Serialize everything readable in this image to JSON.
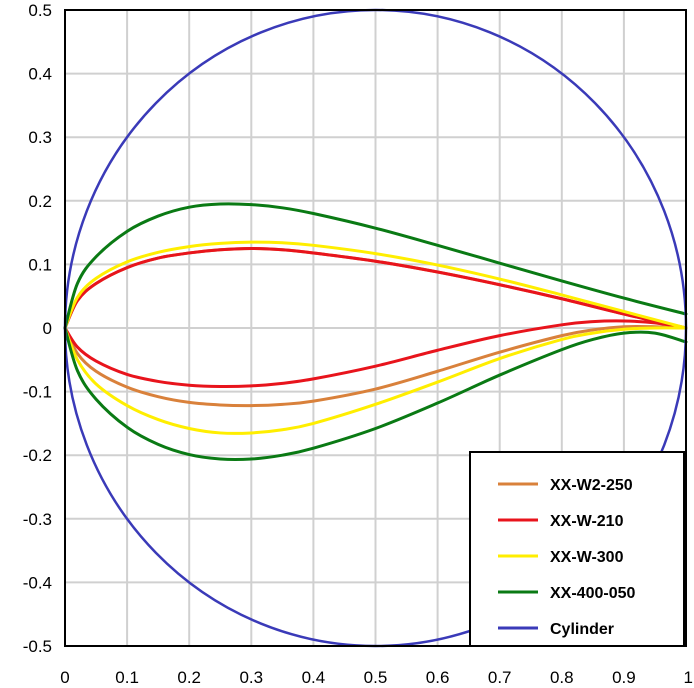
{
  "chart_data": {
    "type": "line",
    "title": "",
    "xlabel": "",
    "ylabel": "",
    "xlim": [
      0,
      1
    ],
    "ylim": [
      -0.5,
      0.5
    ],
    "x_ticks": [
      "0",
      "0.1",
      "0.2",
      "0.3",
      "0.4",
      "0.5",
      "0.6",
      "0.7",
      "0.8",
      "0.9",
      "1"
    ],
    "y_ticks": [
      "0.5",
      "0.4",
      "0.3",
      "0.2",
      "0.1",
      "0",
      "-0.1",
      "-0.2",
      "-0.3",
      "-0.4",
      "-0.5"
    ],
    "grid": true,
    "legend_position": "bottom-right",
    "series": [
      {
        "name": "XX-W2-250",
        "color": "#d9813b",
        "upper": [
          [
            0,
            0
          ],
          [
            0.02,
            0.043
          ],
          [
            0.05,
            0.07
          ],
          [
            0.1,
            0.095
          ],
          [
            0.15,
            0.11
          ],
          [
            0.2,
            0.118
          ],
          [
            0.25,
            0.123
          ],
          [
            0.3,
            0.125
          ],
          [
            0.35,
            0.123
          ],
          [
            0.4,
            0.118
          ],
          [
            0.5,
            0.105
          ],
          [
            0.6,
            0.088
          ],
          [
            0.7,
            0.068
          ],
          [
            0.8,
            0.046
          ],
          [
            0.9,
            0.022
          ],
          [
            1,
            0
          ]
        ],
        "lower": [
          [
            0,
            0
          ],
          [
            0.02,
            -0.04
          ],
          [
            0.05,
            -0.068
          ],
          [
            0.1,
            -0.093
          ],
          [
            0.15,
            -0.108
          ],
          [
            0.2,
            -0.117
          ],
          [
            0.25,
            -0.121
          ],
          [
            0.3,
            -0.122
          ],
          [
            0.35,
            -0.12
          ],
          [
            0.4,
            -0.115
          ],
          [
            0.5,
            -0.096
          ],
          [
            0.6,
            -0.068
          ],
          [
            0.7,
            -0.038
          ],
          [
            0.8,
            -0.012
          ],
          [
            0.85,
            -0.003
          ],
          [
            0.9,
            0.002
          ],
          [
            0.95,
            0.002
          ],
          [
            1,
            0
          ]
        ]
      },
      {
        "name": "XX-W-210",
        "color": "#e8141c",
        "upper": [
          [
            0,
            0
          ],
          [
            0.02,
            0.043
          ],
          [
            0.05,
            0.07
          ],
          [
            0.1,
            0.095
          ],
          [
            0.15,
            0.11
          ],
          [
            0.2,
            0.118
          ],
          [
            0.25,
            0.123
          ],
          [
            0.3,
            0.125
          ],
          [
            0.35,
            0.123
          ],
          [
            0.4,
            0.118
          ],
          [
            0.5,
            0.105
          ],
          [
            0.6,
            0.088
          ],
          [
            0.7,
            0.068
          ],
          [
            0.8,
            0.046
          ],
          [
            0.9,
            0.022
          ],
          [
            1,
            0
          ]
        ],
        "lower": [
          [
            0,
            0
          ],
          [
            0.02,
            -0.03
          ],
          [
            0.05,
            -0.052
          ],
          [
            0.1,
            -0.073
          ],
          [
            0.15,
            -0.084
          ],
          [
            0.2,
            -0.09
          ],
          [
            0.25,
            -0.092
          ],
          [
            0.3,
            -0.091
          ],
          [
            0.35,
            -0.087
          ],
          [
            0.4,
            -0.08
          ],
          [
            0.5,
            -0.06
          ],
          [
            0.6,
            -0.035
          ],
          [
            0.7,
            -0.012
          ],
          [
            0.8,
            0.005
          ],
          [
            0.85,
            0.01
          ],
          [
            0.9,
            0.011
          ],
          [
            0.95,
            0.008
          ],
          [
            1,
            0
          ]
        ]
      },
      {
        "name": "XX-W-300",
        "color": "#ffee00",
        "upper": [
          [
            0,
            0
          ],
          [
            0.02,
            0.048
          ],
          [
            0.05,
            0.078
          ],
          [
            0.1,
            0.104
          ],
          [
            0.15,
            0.119
          ],
          [
            0.2,
            0.128
          ],
          [
            0.25,
            0.133
          ],
          [
            0.3,
            0.135
          ],
          [
            0.35,
            0.134
          ],
          [
            0.4,
            0.13
          ],
          [
            0.5,
            0.117
          ],
          [
            0.6,
            0.099
          ],
          [
            0.7,
            0.077
          ],
          [
            0.8,
            0.052
          ],
          [
            0.9,
            0.026
          ],
          [
            1,
            0
          ]
        ],
        "lower": [
          [
            0,
            0
          ],
          [
            0.02,
            -0.05
          ],
          [
            0.05,
            -0.088
          ],
          [
            0.1,
            -0.122
          ],
          [
            0.15,
            -0.144
          ],
          [
            0.2,
            -0.158
          ],
          [
            0.25,
            -0.165
          ],
          [
            0.3,
            -0.165
          ],
          [
            0.35,
            -0.16
          ],
          [
            0.4,
            -0.15
          ],
          [
            0.5,
            -0.12
          ],
          [
            0.6,
            -0.085
          ],
          [
            0.7,
            -0.048
          ],
          [
            0.8,
            -0.018
          ],
          [
            0.85,
            -0.008
          ],
          [
            0.9,
            -0.002
          ],
          [
            0.95,
            0.0
          ],
          [
            1,
            0
          ]
        ]
      },
      {
        "name": "XX-400-050",
        "color": "#0a7a14",
        "upper": [
          [
            0,
            0
          ],
          [
            0.02,
            0.07
          ],
          [
            0.05,
            0.112
          ],
          [
            0.1,
            0.152
          ],
          [
            0.15,
            0.176
          ],
          [
            0.2,
            0.19
          ],
          [
            0.25,
            0.195
          ],
          [
            0.3,
            0.194
          ],
          [
            0.35,
            0.189
          ],
          [
            0.4,
            0.18
          ],
          [
            0.5,
            0.157
          ],
          [
            0.6,
            0.13
          ],
          [
            0.7,
            0.102
          ],
          [
            0.8,
            0.074
          ],
          [
            0.9,
            0.047
          ],
          [
            1,
            0.022
          ]
        ],
        "lower": [
          [
            0,
            0
          ],
          [
            0.02,
            -0.067
          ],
          [
            0.05,
            -0.112
          ],
          [
            0.1,
            -0.156
          ],
          [
            0.15,
            -0.183
          ],
          [
            0.2,
            -0.199
          ],
          [
            0.25,
            -0.206
          ],
          [
            0.3,
            -0.206
          ],
          [
            0.35,
            -0.2
          ],
          [
            0.4,
            -0.189
          ],
          [
            0.5,
            -0.158
          ],
          [
            0.6,
            -0.118
          ],
          [
            0.7,
            -0.074
          ],
          [
            0.8,
            -0.034
          ],
          [
            0.85,
            -0.018
          ],
          [
            0.9,
            -0.008
          ],
          [
            0.95,
            -0.008
          ],
          [
            1,
            -0.022
          ]
        ]
      },
      {
        "name": "Cylinder",
        "color": "#3a3ab8",
        "center": [
          0.5,
          0
        ],
        "radius": 0.5
      }
    ]
  }
}
